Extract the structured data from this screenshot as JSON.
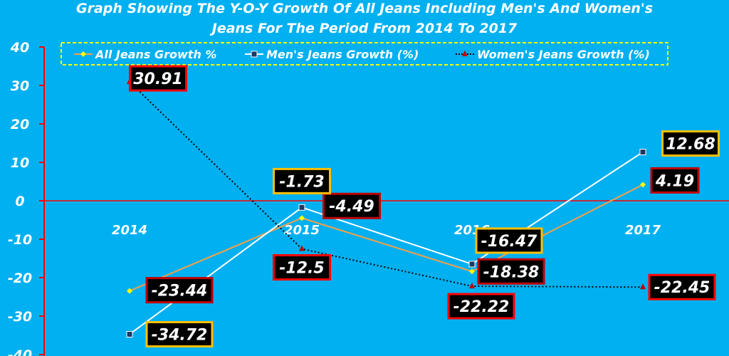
{
  "chart_data": {
    "type": "line",
    "title_line1": "Graph Showing The Y-O-Y Growth Of All Jeans Including Men's And Women's",
    "title_line2": "Jeans For The Period From 2014 To 2017",
    "categories": [
      "2014",
      "2015",
      "2016",
      "2017"
    ],
    "ylim": [
      -40,
      40
    ],
    "yticks": [
      "40",
      "30",
      "20",
      "10",
      "0",
      "-10",
      "-20",
      "-30",
      "-40"
    ],
    "legend_position": "top",
    "series": [
      {
        "name": "All Jeans Growth %",
        "values": [
          -23.44,
          -4.49,
          -18.38,
          4.19
        ],
        "labels": [
          "-23.44",
          "-4.49",
          "-18.38",
          "4.19"
        ],
        "color": "#f4a048",
        "marker": "diamond",
        "marker_color": "#ffff00",
        "label_border": "#c00000"
      },
      {
        "name": "Men's Jeans  Growth (%)",
        "values": [
          -34.72,
          -1.73,
          -16.47,
          12.68
        ],
        "labels": [
          "-34.72",
          "-1.73",
          "-16.47",
          "12.68"
        ],
        "color": "#ffffff",
        "marker": "square",
        "marker_color": "#1f3864",
        "label_border": "#ffc000"
      },
      {
        "name": "Women's Jeans Growth (%)",
        "values": [
          30.91,
          -12.5,
          -22.22,
          -22.45
        ],
        "labels": [
          "30.91",
          "-12.5",
          "-22.22",
          "-22.45"
        ],
        "color": "#000000",
        "marker": "triangle",
        "marker_color": "#c00000",
        "label_border": "#ff0000"
      }
    ]
  }
}
